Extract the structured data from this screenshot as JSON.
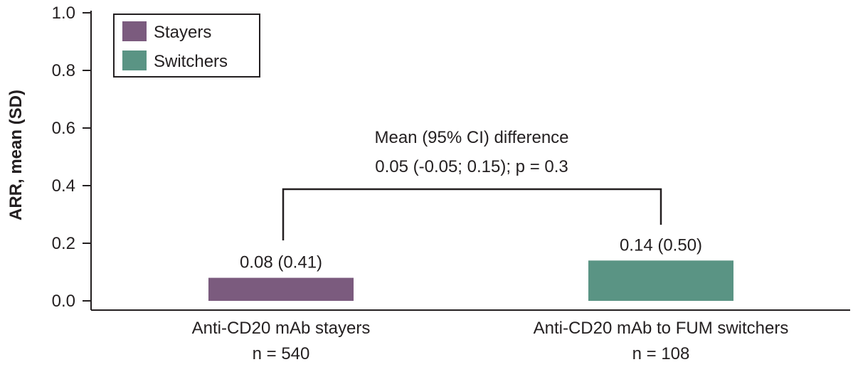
{
  "chart_data": {
    "type": "bar",
    "title": "",
    "xlabel": "",
    "ylabel": "ARR, mean (SD)",
    "ylim": [
      0,
      1.0
    ],
    "yticks": [
      "0.0",
      "0.2",
      "0.4",
      "0.6",
      "0.8",
      "1.0"
    ],
    "grid": false,
    "legend_position": "top-left",
    "series": [
      {
        "name": "Stayers",
        "color": "#7b5b7e",
        "category": "Anti-CD20 mAb stayers",
        "n_label": "n = 540",
        "value": 0.08,
        "label": "0.08 (0.41)"
      },
      {
        "name": "Switchers",
        "color": "#5a9484",
        "category": "Anti-CD20 mAb to FUM switchers",
        "n_label": "n = 108",
        "value": 0.14,
        "label": "0.14 (0.50)"
      }
    ],
    "annotation": {
      "line1": "Mean (95% CI) difference",
      "line2": "0.05 (-0.05; 0.15); p = 0.3"
    }
  }
}
